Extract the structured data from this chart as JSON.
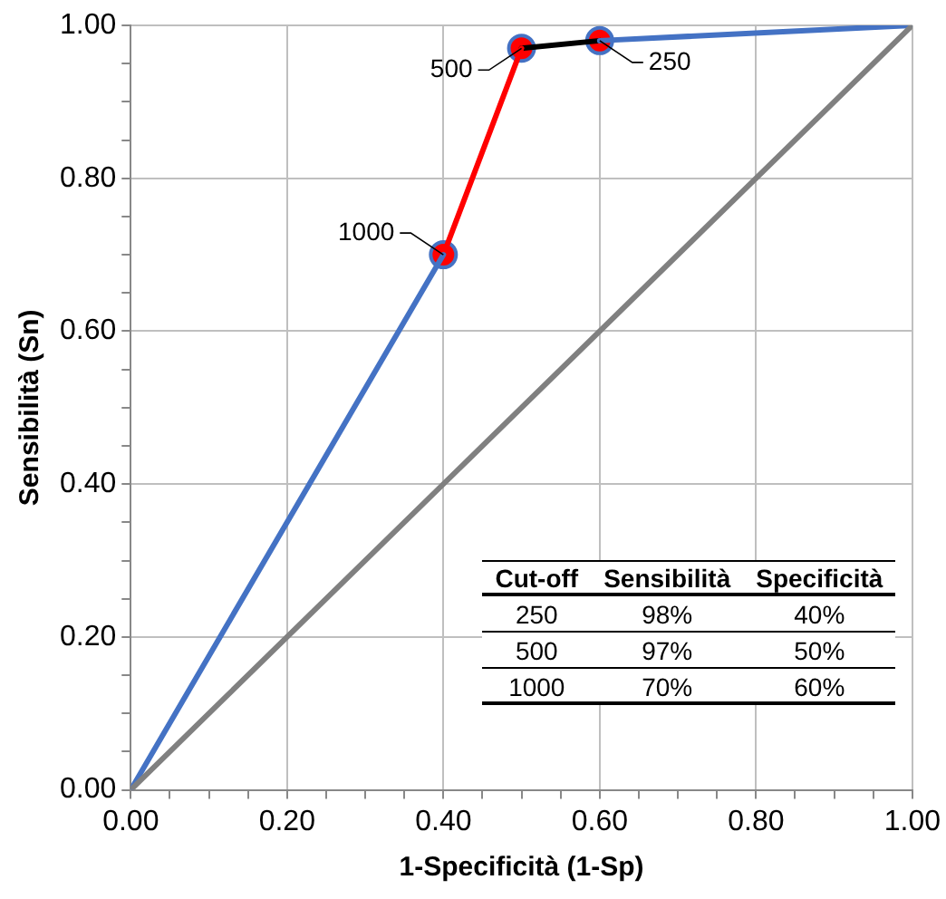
{
  "chart_data": {
    "type": "line",
    "xlabel": "1-Specificità (1-Sp)",
    "ylabel": "Sensibilità (Sn)",
    "xlim": [
      0,
      1
    ],
    "ylim": [
      0,
      1
    ],
    "xticks": [
      {
        "value": 0,
        "label": "0.00"
      },
      {
        "value": 0.05,
        "label": null
      },
      {
        "value": 0.1,
        "label": null
      },
      {
        "value": 0.15,
        "label": null
      },
      {
        "value": 0.2,
        "label": "0.20"
      },
      {
        "value": 0.25,
        "label": null
      },
      {
        "value": 0.3,
        "label": null
      },
      {
        "value": 0.35,
        "label": null
      },
      {
        "value": 0.4,
        "label": "0.40"
      },
      {
        "value": 0.45,
        "label": null
      },
      {
        "value": 0.5,
        "label": null
      },
      {
        "value": 0.55,
        "label": null
      },
      {
        "value": 0.6,
        "label": "0.60"
      },
      {
        "value": 0.65,
        "label": null
      },
      {
        "value": 0.7,
        "label": null
      },
      {
        "value": 0.75,
        "label": null
      },
      {
        "value": 0.8,
        "label": "0.80"
      },
      {
        "value": 0.85,
        "label": null
      },
      {
        "value": 0.9,
        "label": null
      },
      {
        "value": 0.95,
        "label": null
      },
      {
        "value": 1,
        "label": "1.00"
      }
    ],
    "yticks": [
      {
        "value": 0,
        "label": "0.00"
      },
      {
        "value": 0.05,
        "label": null
      },
      {
        "value": 0.1,
        "label": null
      },
      {
        "value": 0.15,
        "label": null
      },
      {
        "value": 0.2,
        "label": "0.20"
      },
      {
        "value": 0.25,
        "label": null
      },
      {
        "value": 0.3,
        "label": null
      },
      {
        "value": 0.35,
        "label": null
      },
      {
        "value": 0.4,
        "label": "0.40"
      },
      {
        "value": 0.45,
        "label": null
      },
      {
        "value": 0.5,
        "label": null
      },
      {
        "value": 0.55,
        "label": null
      },
      {
        "value": 0.6,
        "label": "0.60"
      },
      {
        "value": 0.65,
        "label": null
      },
      {
        "value": 0.7,
        "label": null
      },
      {
        "value": 0.75,
        "label": null
      },
      {
        "value": 0.8,
        "label": "0.80"
      },
      {
        "value": 0.85,
        "label": null
      },
      {
        "value": 0.9,
        "label": null
      },
      {
        "value": 0.95,
        "label": null
      },
      {
        "value": 1,
        "label": "1.00"
      }
    ],
    "grid": true,
    "legend": false,
    "series": [
      {
        "color": "#808080",
        "x": [
          0,
          1
        ],
        "values": [
          0,
          1
        ]
      },
      {
        "color": "#4472c4",
        "x": [
          0,
          0.4,
          0.5,
          0.6,
          1
        ],
        "values": [
          0,
          0.7,
          null,
          0.98,
          1
        ]
      },
      {
        "color": "#ff0000",
        "x": [
          0.4,
          0.5
        ],
        "values": [
          0.7,
          0.97
        ]
      },
      {
        "color": "#000000",
        "x": [
          0.5,
          0.6
        ],
        "values": [
          0.97,
          0.98
        ]
      },
      {
        "type": "scatter",
        "color": "#ff0000",
        "marker": "circle",
        "x": [
          0.4,
          0.5,
          0.6
        ],
        "values": [
          0.7,
          0.97,
          0.98
        ]
      }
    ],
    "annotations": [
      {
        "text": "1000",
        "x": 0.4,
        "y": 0.7
      },
      {
        "text": "500",
        "x": 0.5,
        "y": 0.97
      },
      {
        "text": "250",
        "x": 0.6,
        "y": 0.98
      },
      "Cut-off",
      "Sensibilità",
      "Specificità",
      "250",
      "98%",
      "40%",
      "500",
      "97%",
      "50%",
      "1000",
      "70%",
      "60%"
    ]
  }
}
